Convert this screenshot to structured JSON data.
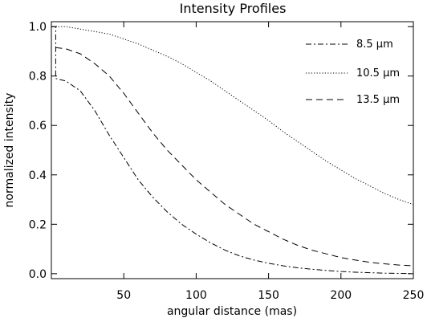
{
  "chart_data": {
    "type": "line",
    "title": "Intensity Profiles",
    "xlabel": "angular distance (mas)",
    "ylabel": "normalized intensity",
    "xlim": [
      0,
      250
    ],
    "ylim": [
      -0.02,
      1.02
    ],
    "x_ticks": [
      50,
      100,
      150,
      200,
      250
    ],
    "x_tick_labels": [
      "50",
      "100",
      "150",
      "200",
      "250"
    ],
    "y_ticks": [
      0.0,
      0.2,
      0.4,
      0.6,
      0.8,
      1.0
    ],
    "y_tick_labels": [
      "0.0",
      "0.2",
      "0.4",
      "0.6",
      "0.8",
      "1.0"
    ],
    "grid": false,
    "legend_position": "top-right",
    "series": [
      {
        "name": "8.5 μm",
        "line_style": "dash-dot",
        "x": [
          0,
          3,
          3,
          10,
          20,
          30,
          40,
          50,
          60,
          70,
          80,
          90,
          100,
          110,
          120,
          130,
          140,
          150,
          160,
          170,
          180,
          190,
          200,
          210,
          220,
          230,
          240,
          250
        ],
        "y": [
          1.0,
          1.0,
          0.79,
          0.78,
          0.74,
          0.66,
          0.56,
          0.47,
          0.38,
          0.31,
          0.25,
          0.2,
          0.16,
          0.125,
          0.095,
          0.072,
          0.055,
          0.042,
          0.032,
          0.024,
          0.018,
          0.013,
          0.009,
          0.006,
          0.004,
          0.002,
          0.001,
          0.0
        ]
      },
      {
        "name": "10.5 μm",
        "line_style": "dotted",
        "x": [
          3,
          10,
          20,
          30,
          40,
          50,
          60,
          70,
          80,
          90,
          100,
          110,
          120,
          130,
          140,
          150,
          160,
          170,
          180,
          190,
          200,
          210,
          220,
          230,
          240,
          250
        ],
        "y": [
          1.0,
          1.0,
          0.99,
          0.98,
          0.97,
          0.95,
          0.93,
          0.905,
          0.88,
          0.85,
          0.815,
          0.78,
          0.74,
          0.7,
          0.66,
          0.62,
          0.575,
          0.535,
          0.495,
          0.455,
          0.42,
          0.385,
          0.355,
          0.325,
          0.3,
          0.28
        ]
      },
      {
        "name": "13.5 μm",
        "line_style": "dashed",
        "x": [
          3,
          10,
          20,
          30,
          40,
          50,
          60,
          70,
          80,
          90,
          100,
          110,
          120,
          130,
          140,
          150,
          160,
          170,
          180,
          190,
          200,
          210,
          220,
          230,
          240,
          250
        ],
        "y": [
          0.915,
          0.91,
          0.89,
          0.85,
          0.8,
          0.73,
          0.65,
          0.57,
          0.5,
          0.44,
          0.38,
          0.33,
          0.28,
          0.24,
          0.2,
          0.17,
          0.14,
          0.115,
          0.095,
          0.08,
          0.065,
          0.055,
          0.046,
          0.04,
          0.035,
          0.032
        ]
      }
    ]
  },
  "styles": {
    "line_color": "#000000",
    "background": "#ffffff",
    "dash_patterns": {
      "dash-dot": "7,3,2,3",
      "dotted": "1.2,2.2",
      "dashed": "8,5"
    }
  }
}
